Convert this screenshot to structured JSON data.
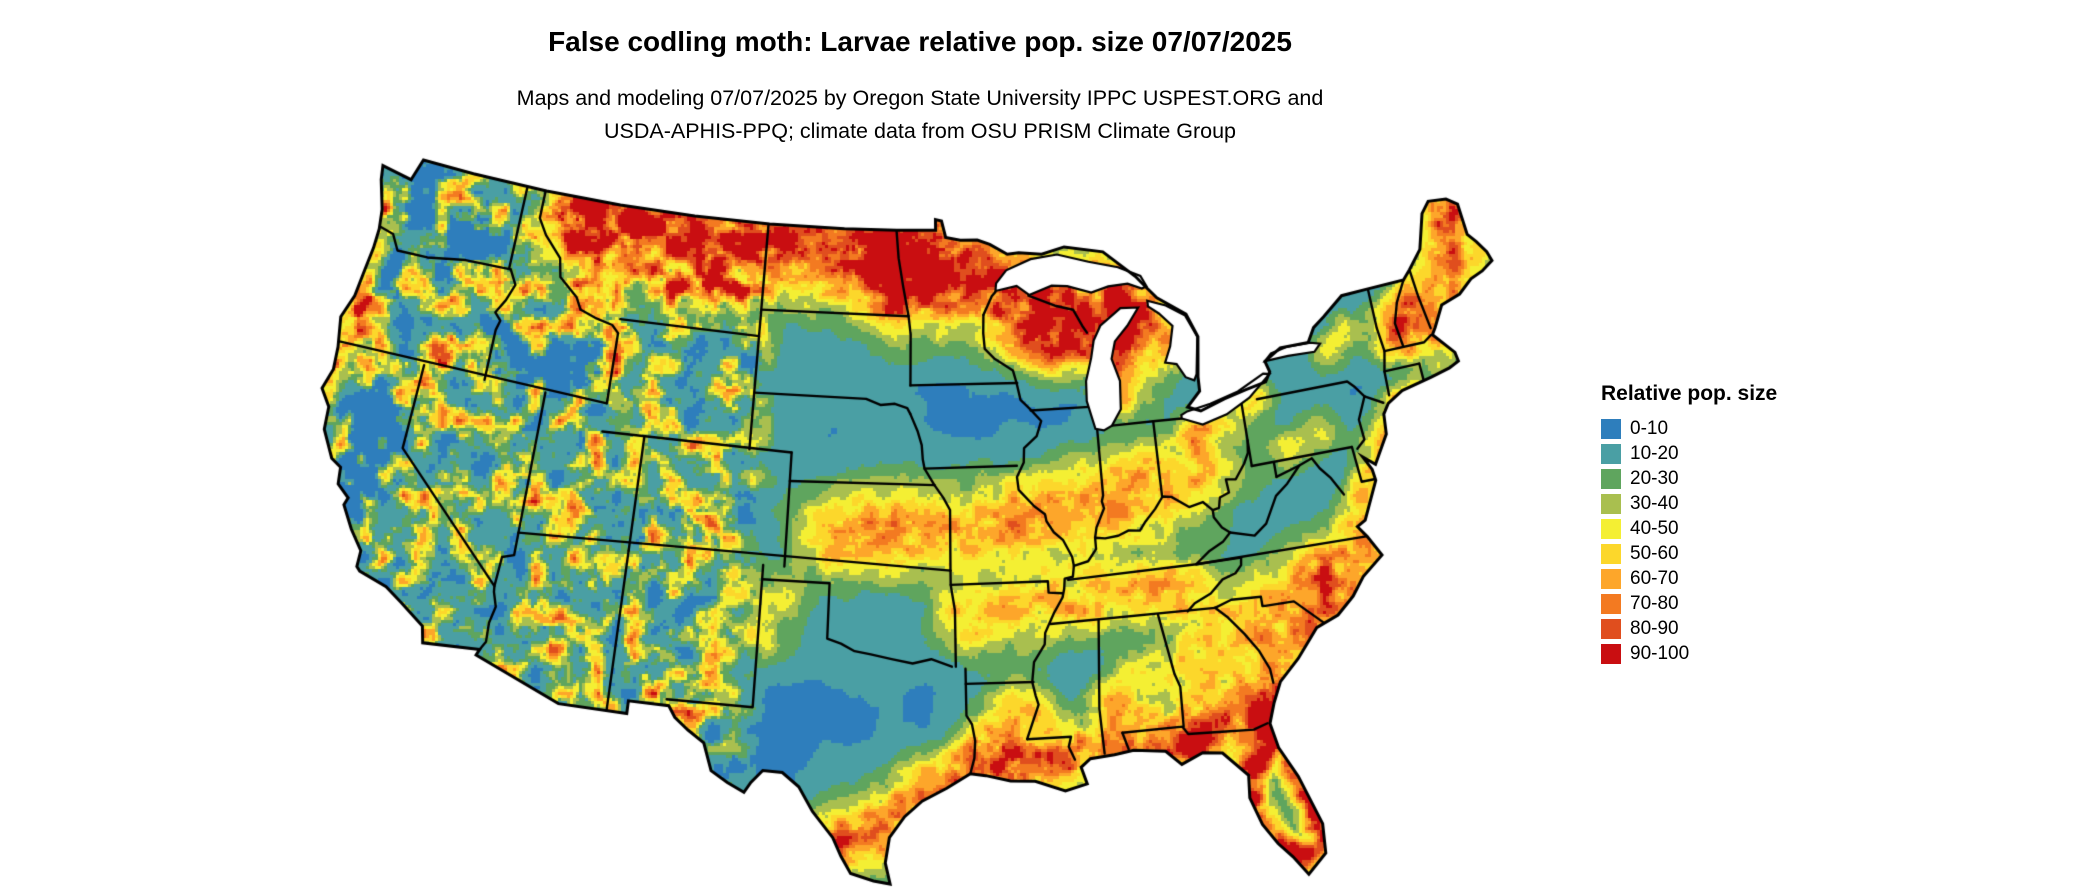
{
  "header": {
    "title": "False codling moth: Larvae relative pop. size 07/07/2025",
    "subtitle_lines": [
      "Maps and modeling 07/07/2025 by Oregon State University IPPC USPEST.ORG and",
      "USDA-APHIS-PPQ; climate data from OSU PRISM Climate Group"
    ]
  },
  "legend": {
    "title": "Relative pop. size",
    "items": [
      {
        "label": "0-10",
        "color": "#2e7ebc"
      },
      {
        "label": "10-20",
        "color": "#4a9fa4"
      },
      {
        "label": "20-30",
        "color": "#5fa55e"
      },
      {
        "label": "30-40",
        "color": "#a9bf4f"
      },
      {
        "label": "40-50",
        "color": "#f4ef33"
      },
      {
        "label": "50-60",
        "color": "#fcd72b"
      },
      {
        "label": "60-70",
        "color": "#fda62a"
      },
      {
        "label": "70-80",
        "color": "#f37a21"
      },
      {
        "label": "80-90",
        "color": "#e04e1e"
      },
      {
        "label": "90-100",
        "color": "#c90e11"
      }
    ]
  },
  "map": {
    "water_color": "#ffffff",
    "boundary_color": "#000000"
  }
}
